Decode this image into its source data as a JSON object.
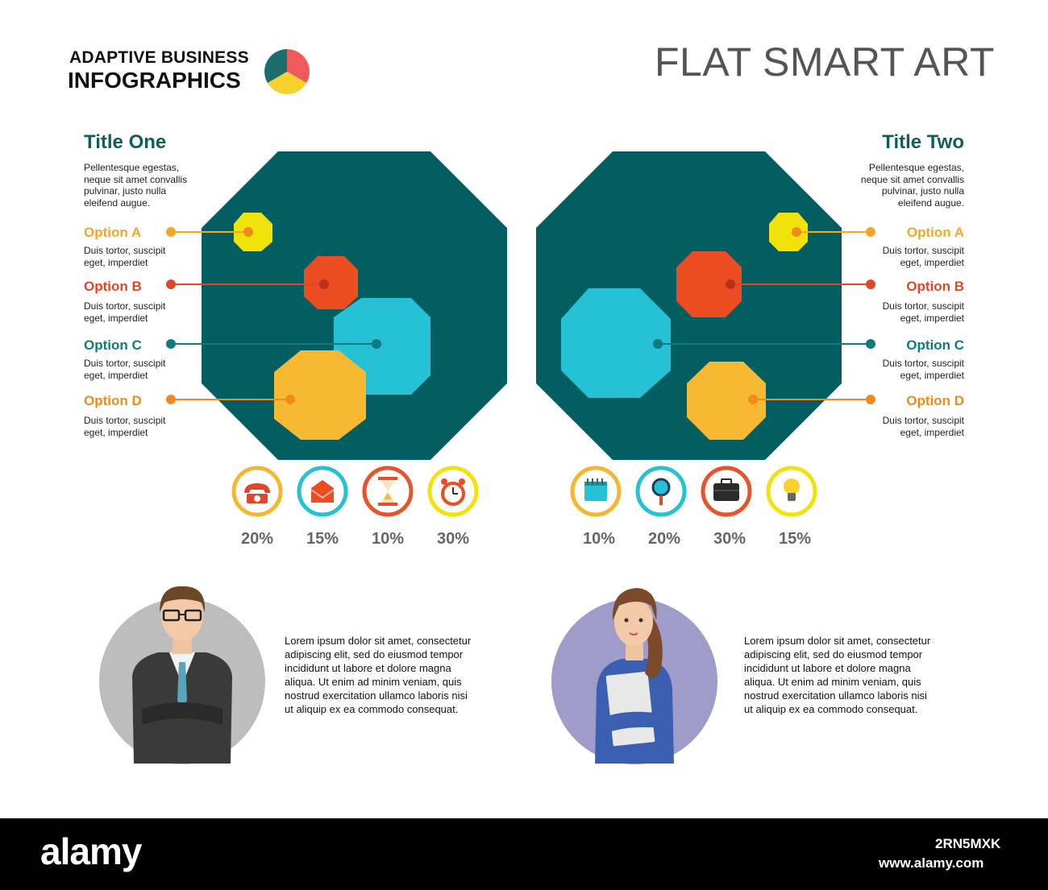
{
  "brand": {
    "line1": "ADAPTIVE BUSINESS",
    "line2": "INFOGRAPHICS"
  },
  "header_title": "FLAT SMART ART",
  "left_panel": {
    "title": "Title One",
    "desc_lines": [
      "Pellentesque egestas,",
      "neque sit amet convallis",
      "pulvinar, justo nulla",
      "eleifend augue."
    ],
    "options": [
      {
        "label": "Option A",
        "desc_lines": [
          "Duis tortor, suscipit",
          "eget, imperdiet"
        ],
        "color": "#f5a623"
      },
      {
        "label": "Option B",
        "desc_lines": [
          "Duis tortor, suscipit",
          "eget, imperdiet"
        ],
        "color": "#e0472a"
      },
      {
        "label": "Option C",
        "desc_lines": [
          "Duis tortor, suscipit",
          "eget, imperdiet"
        ],
        "color": "#0f7b80"
      },
      {
        "label": "Option D",
        "desc_lines": [
          "Duis tortor, suscipit",
          "eget, imperdiet"
        ],
        "color": "#f08a1c"
      }
    ],
    "icons": [
      {
        "name": "telephone-icon",
        "ring": "#f5b731",
        "pct": "20%"
      },
      {
        "name": "envelope-icon",
        "ring": "#27c1d6",
        "pct": "15%"
      },
      {
        "name": "hourglass-icon",
        "ring": "#e8532b",
        "pct": "10%"
      },
      {
        "name": "alarm-clock-icon",
        "ring": "#f2e20c",
        "pct": "30%"
      }
    ],
    "lorem_lines": [
      "Lorem ipsum dolor sit amet, consectetur",
      "adipiscing elit, sed do eiusmod tempor",
      "incididunt ut labore et dolore magna",
      "aliqua. Ut enim ad minim veniam, quis",
      "nostrud exercitation ullamco laboris nisi",
      "ut aliquip ex ea commodo consequat."
    ]
  },
  "right_panel": {
    "title": "Title Two",
    "desc_lines": [
      "Pellentesque egestas,",
      "neque sit amet convallis",
      "pulvinar, justo nulla",
      "eleifend augue."
    ],
    "options": [
      {
        "label": "Option A",
        "desc_lines": [
          "Duis tortor, suscipit",
          "eget, imperdiet"
        ],
        "color": "#f5a623"
      },
      {
        "label": "Option B",
        "desc_lines": [
          "Duis tortor, suscipit",
          "eget, imperdiet"
        ],
        "color": "#e0472a"
      },
      {
        "label": "Option C",
        "desc_lines": [
          "Duis tortor, suscipit",
          "eget, imperdiet"
        ],
        "color": "#0f7b80"
      },
      {
        "label": "Option D",
        "desc_lines": [
          "Duis tortor, suscipit",
          "eget, imperdiet"
        ],
        "color": "#f08a1c"
      }
    ],
    "icons": [
      {
        "name": "notepad-icon",
        "ring": "#f5b731",
        "pct": "10%"
      },
      {
        "name": "magnifier-icon",
        "ring": "#27c1d6",
        "pct": "20%"
      },
      {
        "name": "briefcase-icon",
        "ring": "#e8532b",
        "pct": "30%"
      },
      {
        "name": "lightbulb-icon",
        "ring": "#f2e20c",
        "pct": "15%"
      }
    ],
    "lorem_lines": [
      "Lorem ipsum dolor sit amet, consectetur",
      "adipiscing elit, sed do eiusmod tempor",
      "incididunt ut labore et dolore magna",
      "aliqua. Ut enim ad minim veniam, quis",
      "nostrud exercitation ullamco laboris nisi",
      "ut aliquip ex ea commodo consequat."
    ]
  },
  "colors": {
    "big_octagon": "#035e62",
    "yellow": "#f2e20c",
    "red": "#ec4c22",
    "cyan": "#27c1d6",
    "gold": "#f8b932",
    "pie_teal": "#1c6e6e",
    "pie_coral": "#ef5b5b",
    "pie_yellow": "#f8d12c"
  },
  "watermark": {
    "logo": "alamy",
    "id": "2RN5MXK",
    "url": "www.alamy.com"
  }
}
